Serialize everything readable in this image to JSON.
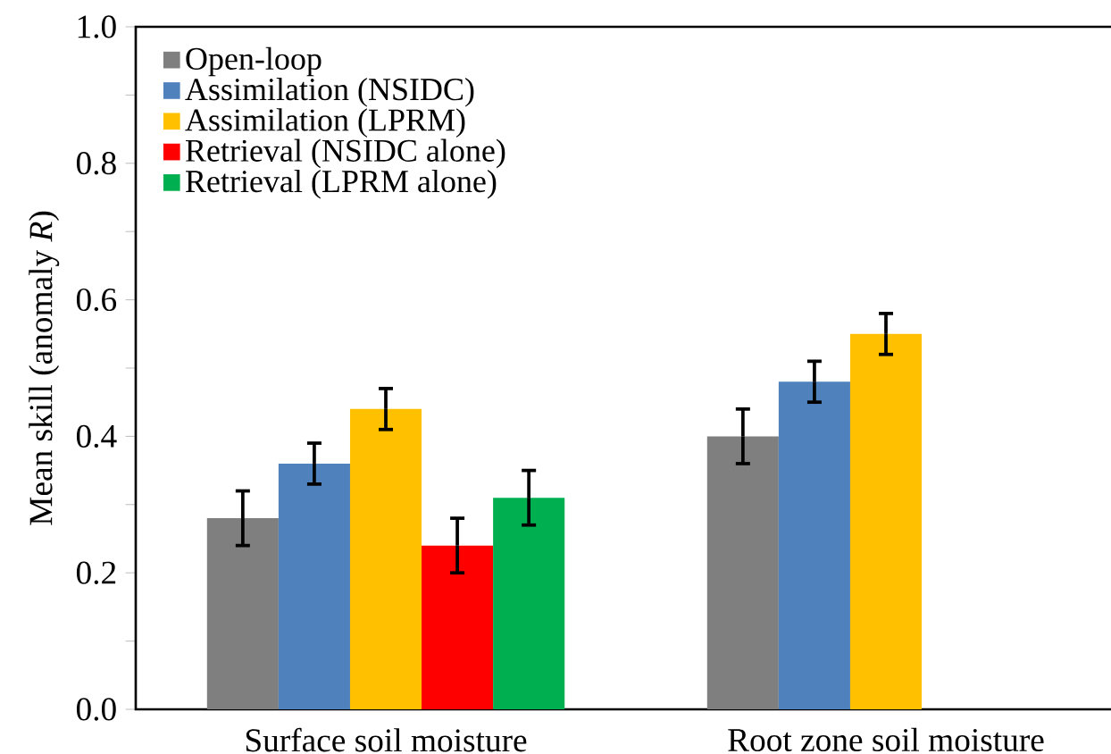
{
  "chart_data": {
    "type": "bar",
    "ylabel": "Mean skill (anomaly *R*)",
    "categories": [
      "Surface soil moisture",
      "Root zone soil moisture"
    ],
    "series": [
      {
        "name": "Open-loop",
        "color": "#7f7f7f",
        "values": [
          0.28,
          0.4
        ],
        "errors": [
          0.04,
          0.04
        ]
      },
      {
        "name": "Assimilation (NSIDC)",
        "color": "#4f81bd",
        "values": [
          0.36,
          0.48
        ],
        "errors": [
          0.03,
          0.03
        ]
      },
      {
        "name": "Assimilation (LPRM)",
        "color": "#ffc000",
        "values": [
          0.44,
          0.55
        ],
        "errors": [
          0.03,
          0.03
        ]
      },
      {
        "name": "Retrieval (NSIDC alone)",
        "color": "#ff0000",
        "values": [
          0.24,
          null
        ],
        "errors": [
          0.04,
          null
        ]
      },
      {
        "name": "Retrieval (LPRM alone)",
        "color": "#00b050",
        "values": [
          0.31,
          null
        ],
        "errors": [
          0.04,
          null
        ]
      }
    ],
    "ylim": [
      0,
      1
    ],
    "yticks": [
      {
        "value": 0,
        "label": "0.0"
      },
      {
        "value": 0.1,
        "label": null
      },
      {
        "value": 0.2,
        "label": "0.2"
      },
      {
        "value": 0.3,
        "label": null
      },
      {
        "value": 0.4,
        "label": "0.4"
      },
      {
        "value": 0.5,
        "label": null
      },
      {
        "value": 0.6,
        "label": "0.6"
      },
      {
        "value": 0.7,
        "label": null
      },
      {
        "value": 0.8,
        "label": "0.8"
      },
      {
        "value": 0.9,
        "label": null
      },
      {
        "value": 1,
        "label": "1.0"
      }
    ],
    "grid": false,
    "legend": "top left"
  }
}
